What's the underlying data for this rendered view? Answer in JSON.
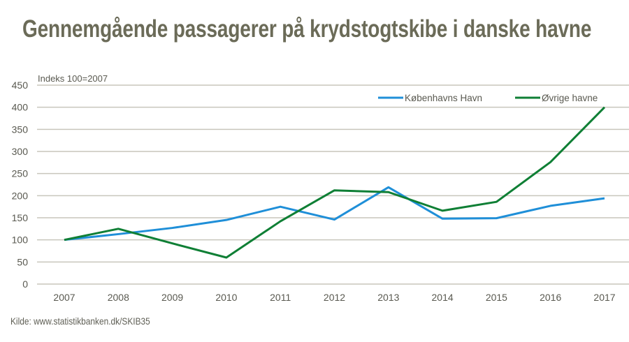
{
  "title": "Gennemgående passagerer på krydstogtskibe i danske havne",
  "source": "Kilde: www.statistikbanken.dk/SKIB35",
  "colors": {
    "title": "#6b6b58",
    "grid": "#c8c6bc",
    "text": "#595950",
    "kobenhavn": "#1f8fd8",
    "ovrige": "#0f7f35"
  },
  "chart_data": {
    "type": "line",
    "title": "Gennemgående passagerer på krydstogtskibe i danske havne",
    "xlabel": "",
    "ylabel": "Indeks 100=2007",
    "categories": [
      "2007",
      "2008",
      "2009",
      "2010",
      "2011",
      "2012",
      "2013",
      "2014",
      "2015",
      "2016",
      "2017"
    ],
    "ylim": [
      0,
      450
    ],
    "yticks": [
      0,
      50,
      100,
      150,
      200,
      250,
      300,
      350,
      400,
      450
    ],
    "grid": true,
    "legend_position": "top-right",
    "series": [
      {
        "name": "Københavns Havn",
        "color": "#1f8fd8",
        "values": [
          100,
          113,
          127,
          145,
          175,
          146,
          219,
          148,
          149,
          177,
          194
        ]
      },
      {
        "name": "Øvrige havne",
        "color": "#0f7f35",
        "values": [
          100,
          125,
          92,
          60,
          142,
          212,
          208,
          166,
          186,
          276,
          400
        ]
      }
    ]
  }
}
